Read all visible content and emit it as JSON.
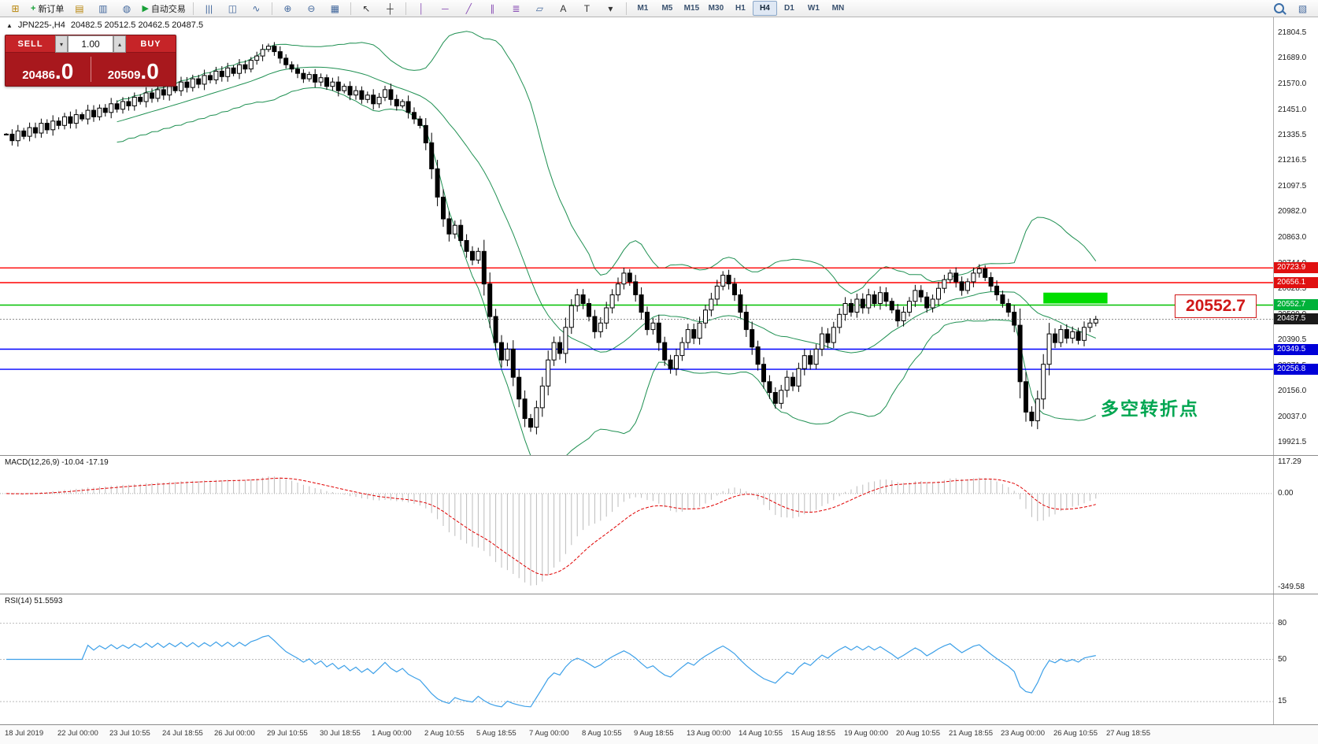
{
  "toolbar": {
    "new_order_label": "新订单",
    "autotrading_label": "自动交易",
    "timeframes": [
      "M1",
      "M5",
      "M15",
      "M30",
      "H1",
      "H4",
      "D1",
      "W1",
      "MN"
    ],
    "active_timeframe": "H4",
    "items": [
      {
        "t": "icon",
        "name": "new-chart-icon",
        "g": "⊞",
        "c": "#b8860b"
      },
      {
        "t": "label",
        "name": "new-order-button",
        "g": "+",
        "gc": "#18a038",
        "label": "新订单"
      },
      {
        "t": "icon",
        "name": "profiles-icon",
        "g": "▤",
        "c": "#b8860b"
      },
      {
        "t": "icon",
        "name": "print-icon",
        "g": "▥",
        "c": "#44699d"
      },
      {
        "t": "icon",
        "name": "community-icon",
        "g": "◍",
        "c": "#44699d"
      },
      {
        "t": "label",
        "name": "autotrading-button",
        "g": "▶",
        "gc": "#18a038",
        "label": "自动交易"
      },
      {
        "t": "sep"
      },
      {
        "t": "icon",
        "name": "bar-chart-icon",
        "g": "|||",
        "c": "#44699d"
      },
      {
        "t": "icon",
        "name": "candlestick-chart-icon",
        "g": "◫",
        "c": "#44699d"
      },
      {
        "t": "icon",
        "name": "line-chart-icon",
        "g": "∿",
        "c": "#44699d"
      },
      {
        "t": "sep"
      },
      {
        "t": "icon",
        "name": "zoom-in-icon",
        "g": "⊕",
        "c": "#44699d"
      },
      {
        "t": "icon",
        "name": "zoom-out-icon",
        "g": "⊖",
        "c": "#44699d"
      },
      {
        "t": "icon",
        "name": "tile-windows-icon",
        "g": "▦",
        "c": "#44699d"
      },
      {
        "t": "sep"
      },
      {
        "t": "icon",
        "name": "cursor-icon",
        "g": "↖",
        "c": "#333333"
      },
      {
        "t": "icon",
        "name": "crosshair-icon",
        "g": "┼",
        "c": "#333333"
      },
      {
        "t": "sep"
      },
      {
        "t": "icon",
        "name": "vertical-line-icon",
        "g": "│",
        "c": "#8a4fb5"
      },
      {
        "t": "icon",
        "name": "horizontal-line-icon",
        "g": "─",
        "c": "#8a4fb5"
      },
      {
        "t": "icon",
        "name": "trendline-icon",
        "g": "╱",
        "c": "#8a4fb5"
      },
      {
        "t": "icon",
        "name": "equidistant-channel-icon",
        "g": "∥",
        "c": "#8a4fb5"
      },
      {
        "t": "icon",
        "name": "fibonacci-icon",
        "g": "≣",
        "c": "#8a4fb5"
      },
      {
        "t": "icon",
        "name": "shapes-icon",
        "g": "▱",
        "c": "#44699d"
      },
      {
        "t": "icon",
        "name": "text-icon",
        "g": "A",
        "c": "#333333"
      },
      {
        "t": "icon",
        "name": "text-label-icon",
        "g": "T",
        "c": "#333333"
      },
      {
        "t": "icon",
        "name": "arrows-icon",
        "g": "▾",
        "c": "#333333"
      },
      {
        "t": "sep"
      },
      {
        "t": "tfs"
      },
      {
        "t": "spacer"
      },
      {
        "t": "mag",
        "name": "search-icon"
      },
      {
        "t": "icon",
        "name": "chart-edit-icon",
        "g": "▧",
        "c": "#44699d"
      }
    ]
  },
  "symbol_bar": {
    "collapse_glyph": "▲",
    "symbol": "JPN225-,H4",
    "ohlc": "20482.5 20512.5 20462.5 20487.5"
  },
  "trade_panel": {
    "sell_label": "SELL",
    "buy_label": "BUY",
    "volume": "1.00",
    "spin_down": "▾",
    "spin_up": "▴",
    "sell_price_main": "20486",
    "sell_price_big": ".0",
    "buy_price_main": "20509",
    "buy_price_big": ".0"
  },
  "annotations": {
    "price_callout": "20552.7",
    "callout_color": "#d01818",
    "cn_note": "多空转折点",
    "cn_note_color": "#00a651"
  },
  "price_axis": {
    "labels": [
      21804.5,
      21689.0,
      21570.0,
      21451.0,
      21335.5,
      21216.5,
      21097.5,
      20982.0,
      20863.0,
      20744.0,
      20628.5,
      20509.0,
      20390.5,
      20271.5,
      20156.0,
      20037.0,
      19921.5
    ],
    "badges": [
      {
        "price": 20723.9,
        "color": "#e01010"
      },
      {
        "price": 20656.1,
        "color": "#e01010"
      },
      {
        "price": 20552.7,
        "color": "#00b23a"
      },
      {
        "price": 20487.5,
        "color": "#1a1a1a"
      },
      {
        "price": 20349.5,
        "color": "#0000d8"
      },
      {
        "price": 20256.8,
        "color": "#0000d8"
      }
    ]
  },
  "macd": {
    "label": "MACD(12,26,9) -10.04 -17.19",
    "axis_top": "117.29",
    "axis_zero": "0.00",
    "axis_bottom": "-349.58",
    "histogram_color": "#bcbcbc",
    "signal_color": "#e00000"
  },
  "rsi": {
    "label": "RSI(14) 51.5593",
    "levels": [
      80,
      50,
      15
    ],
    "line_color": "#3da0e8"
  },
  "time_axis": {
    "labels": [
      "18 Jul 2019",
      "22 Jul 00:00",
      "23 Jul 10:55",
      "24 Jul 18:55",
      "26 Jul 00:00",
      "29 Jul 10:55",
      "30 Jul 18:55",
      "1 Aug 00:00",
      "2 Aug 10:55",
      "5 Aug 18:55",
      "7 Aug 00:00",
      "8 Aug 10:55",
      "9 Aug 18:55",
      "13 Aug 00:00",
      "14 Aug 10:55",
      "15 Aug 18:55",
      "19 Aug 00:00",
      "20 Aug 10:55",
      "21 Aug 18:55",
      "23 Aug 00:00",
      "26 Aug 10:55",
      "27 Aug 18:55"
    ]
  },
  "chart_data": {
    "type": "candlestick",
    "symbol": "JPN225-",
    "timeframe": "H4",
    "current_bar_ohlc": [
      20482.5,
      20512.5,
      20462.5,
      20487.5
    ],
    "current_price": 20487.5,
    "price_range": [
      19880,
      21860
    ],
    "closes": [
      21340,
      21310,
      21355,
      21330,
      21370,
      21345,
      21390,
      21360,
      21400,
      21380,
      21420,
      21390,
      21430,
      21410,
      21450,
      21420,
      21460,
      21440,
      21480,
      21455,
      21490,
      21470,
      21510,
      21490,
      21530,
      21505,
      21545,
      21520,
      21560,
      21540,
      21580,
      21555,
      21595,
      21570,
      21610,
      21590,
      21630,
      21605,
      21645,
      21620,
      21660,
      21640,
      21680,
      21700,
      21730,
      21745,
      21720,
      21690,
      21660,
      21640,
      21620,
      21595,
      21615,
      21580,
      21600,
      21560,
      21580,
      21540,
      21560,
      21520,
      21540,
      21500,
      21520,
      21480,
      21510,
      21545,
      21500,
      21470,
      21490,
      21440,
      21410,
      21380,
      21300,
      21180,
      21050,
      20950,
      20880,
      20920,
      20850,
      20800,
      20760,
      20800,
      20650,
      20500,
      20380,
      20300,
      20350,
      20220,
      20120,
      20030,
      19990,
      20080,
      20180,
      20300,
      20380,
      20330,
      20450,
      20550,
      20600,
      20560,
      20500,
      20430,
      20470,
      20540,
      20600,
      20650,
      20700,
      20660,
      20600,
      20520,
      20440,
      20470,
      20380,
      20300,
      20260,
      20320,
      20380,
      20440,
      20400,
      20470,
      20530,
      20580,
      20640,
      20690,
      20650,
      20600,
      20520,
      20440,
      20360,
      20280,
      20200,
      20150,
      20100,
      20160,
      20220,
      20180,
      20260,
      20320,
      20280,
      20350,
      20420,
      20380,
      20450,
      20510,
      20560,
      20520,
      20580,
      20540,
      20600,
      20560,
      20610,
      20570,
      20530,
      20480,
      20520,
      20570,
      20620,
      20590,
      20540,
      20580,
      20630,
      20670,
      20700,
      20660,
      20620,
      20660,
      20700,
      20720,
      20680,
      20640,
      20600,
      20560,
      20520,
      20460,
      20200,
      20060,
      20020,
      20120,
      20280,
      20420,
      20380,
      20440,
      20400,
      20430,
      20390,
      20450,
      20470,
      20487.5
    ],
    "bollinger": {
      "period": 20,
      "deviation": 2,
      "color": "#1f9052"
    },
    "hlines": [
      {
        "price": 20723.9,
        "color": "#ff0000"
      },
      {
        "price": 20656.1,
        "color": "#ff0000"
      },
      {
        "price": 20552.7,
        "color": "#00c000"
      },
      {
        "price": 20349.5,
        "color": "#0000ff"
      },
      {
        "price": 20256.8,
        "color": "#0000ff"
      }
    ],
    "rect_zone": {
      "from_candle": 178,
      "to_candle": 189,
      "price_top": 20610,
      "price_bottom": 20560,
      "color": "#00dd00"
    },
    "macd_range": [
      -349.58,
      117.29
    ],
    "macd_values_shown": [
      -10.04,
      -17.19
    ],
    "rsi_value_shown": 51.5593
  }
}
